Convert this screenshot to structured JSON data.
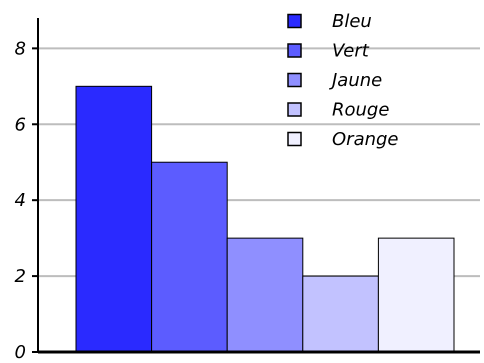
{
  "chart_data": {
    "type": "bar",
    "categories": [
      "Bleu",
      "Vert",
      "Jaune",
      "Rouge",
      "Orange"
    ],
    "values": [
      7,
      5,
      3,
      2,
      3
    ],
    "colors": [
      "#2a2aff",
      "#5c5cff",
      "#8f8fff",
      "#c2c2ff",
      "#f0f0ff"
    ],
    "ylim": [
      0,
      8.8
    ],
    "yticks": [
      0,
      2,
      4,
      6,
      8
    ],
    "grid": true,
    "legend_position": "top-right",
    "title": "",
    "xlabel": "",
    "ylabel": ""
  }
}
